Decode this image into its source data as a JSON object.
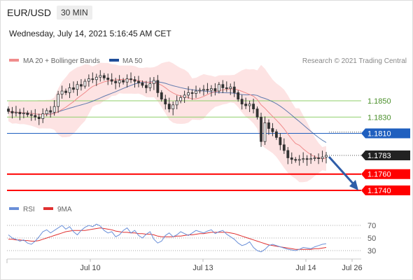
{
  "header": {
    "symbol": "EUR/USD",
    "timeframe": "30 MIN",
    "datetime": "Wednesday, July 14, 2021 5:16:45 AM CET"
  },
  "legend": {
    "ma20": "MA 20 + Bollinger Bands",
    "ma50": "MA 50",
    "copyright": "Research © 2021 Trading Central",
    "rsi": "RSI",
    "rsi_ma": "9MA"
  },
  "colors": {
    "ma20": "#f08c8c",
    "ma50": "#1f4e99",
    "bollinger_fill": "#fde3e3",
    "candle": "#333333",
    "resistance": "#8fcf6a",
    "pivot": "#1f5fbf",
    "support": "#ff0000",
    "current": "#222222",
    "arrow": "#2f5da8",
    "rsi": "#6a8fd8",
    "rsi_ma": "#e03030"
  },
  "chart_data": [
    {
      "type": "candlestick",
      "title": "EUR/USD 30 MIN",
      "x_ticks": [
        "Jul 10",
        "Jul 13",
        "Jul 14",
        "Jul 26"
      ],
      "levels": [
        {
          "value": 1.185,
          "label": "1.1850",
          "kind": "resistance"
        },
        {
          "value": 1.183,
          "label": "1.1830",
          "kind": "resistance"
        },
        {
          "value": 1.181,
          "label": "1.1810",
          "kind": "pivot"
        },
        {
          "value": 1.1783,
          "label": "1.1783",
          "kind": "current"
        },
        {
          "value": 1.176,
          "label": "1.1760",
          "kind": "support"
        },
        {
          "value": 1.174,
          "label": "1.1740",
          "kind": "support"
        }
      ],
      "ylim": [
        1.1735,
        1.19
      ],
      "closes": [
        1.1837,
        1.1835,
        1.1836,
        1.1834,
        1.1835,
        1.1833,
        1.1832,
        1.183,
        1.1828,
        1.1834,
        1.1838,
        1.1836,
        1.1843,
        1.1858,
        1.1862,
        1.186,
        1.1866,
        1.1864,
        1.187,
        1.1868,
        1.1874,
        1.1877,
        1.1876,
        1.1879,
        1.1881,
        1.1878,
        1.1876,
        1.1874,
        1.1872,
        1.1875,
        1.1873,
        1.1877,
        1.1876,
        1.1874,
        1.1872,
        1.1869,
        1.1866,
        1.1871,
        1.1875,
        1.186,
        1.1852,
        1.1846,
        1.184,
        1.1845,
        1.185,
        1.1854,
        1.1857,
        1.186,
        1.1859,
        1.1862,
        1.1863,
        1.1864,
        1.1863,
        1.1865,
        1.1862,
        1.187,
        1.1866,
        1.1865,
        1.1867,
        1.186,
        1.1852,
        1.1846,
        1.1844,
        1.1846,
        1.184,
        1.183,
        1.18,
        1.1823,
        1.1816,
        1.1812,
        1.1805,
        1.1796,
        1.1789,
        1.178,
        1.1778,
        1.1777,
        1.1778,
        1.1779,
        1.1778,
        1.1779,
        1.178,
        1.1779,
        1.1781,
        1.1783
      ]
    },
    {
      "type": "line",
      "title": "RSI",
      "series": [
        {
          "name": "RSI"
        },
        {
          "name": "9MA"
        }
      ],
      "y_ticks": [
        70,
        50,
        30
      ],
      "ylim": [
        20,
        80
      ],
      "rsi": [
        55,
        50,
        48,
        45,
        47,
        42,
        40,
        45,
        52,
        60,
        63,
        58,
        62,
        66,
        70,
        64,
        68,
        60,
        55,
        62,
        67,
        70,
        68,
        72,
        69,
        62,
        58,
        60,
        52,
        55,
        62,
        66,
        58,
        62,
        54,
        50,
        56,
        60,
        48,
        42,
        45,
        54,
        58,
        52,
        55,
        60,
        57,
        54,
        58,
        62,
        60,
        58,
        61,
        63,
        57,
        60,
        62,
        56,
        52,
        48,
        42,
        38,
        40,
        44,
        35,
        30,
        28,
        32,
        38,
        40,
        38,
        36,
        34,
        32,
        31,
        30,
        32,
        35,
        34,
        33,
        36,
        38,
        40,
        41
      ],
      "rsi_ma": [
        48,
        48,
        47,
        47,
        46,
        46,
        45,
        45,
        46,
        48,
        50,
        52,
        54,
        56,
        58,
        60,
        61,
        62,
        62,
        62,
        62,
        63,
        64,
        65,
        66,
        65,
        64,
        63,
        61,
        60,
        59,
        59,
        58,
        58,
        57,
        57,
        56,
        56,
        55,
        53,
        52,
        52,
        52,
        52,
        53,
        53,
        54,
        55,
        55,
        56,
        57,
        57,
        58,
        59,
        59,
        59,
        59,
        59,
        58,
        57,
        55,
        53,
        51,
        49,
        47,
        45,
        43,
        41,
        39,
        38,
        37,
        36,
        35,
        34,
        33,
        32,
        32,
        32,
        32,
        32,
        33,
        33,
        34,
        35
      ]
    }
  ]
}
